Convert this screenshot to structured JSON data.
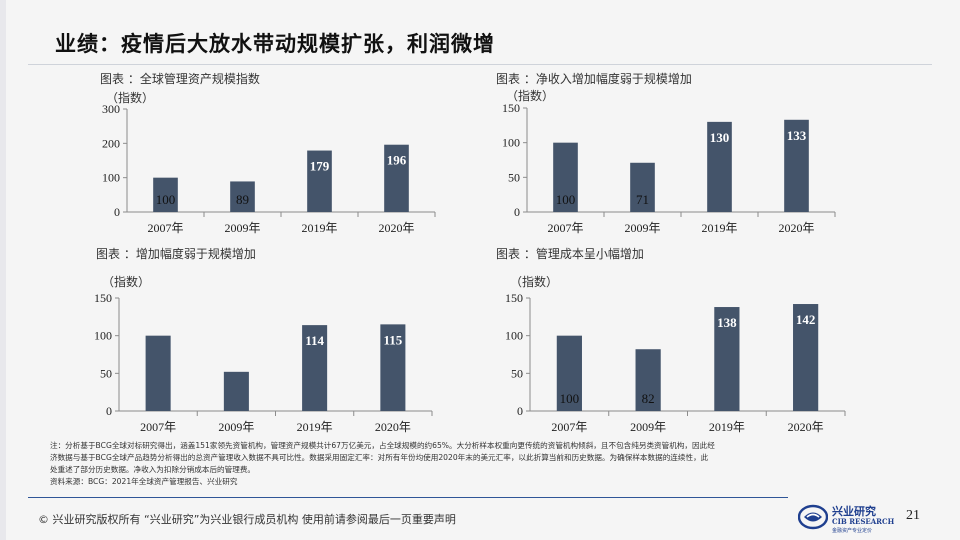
{
  "page": {
    "title": "业绩：疫情后大放水带动规模扩张，利润微增",
    "page_number": "21"
  },
  "chart_data": [
    {
      "type": "bar",
      "caption": "图表 ：全球管理资产规模指数",
      "unit": "（指数）",
      "categories": [
        "2007年",
        "2009年",
        "2019年",
        "2020年"
      ],
      "values": [
        100,
        89,
        179,
        196
      ],
      "ylim": [
        0,
        300
      ],
      "yticks": [
        0,
        100,
        200,
        300
      ],
      "label_inside": [
        false,
        false,
        true,
        true
      ],
      "bar_color": "#44546a",
      "grid": false
    },
    {
      "type": "bar",
      "caption": "图表 ：净收入增加幅度弱于规模增加",
      "unit": "（指数）",
      "categories": [
        "2007年",
        "2009年",
        "2019年",
        "2020年"
      ],
      "values": [
        100,
        71,
        130,
        133
      ],
      "ylim": [
        0,
        150
      ],
      "yticks": [
        0,
        50,
        100,
        150
      ],
      "label_inside": [
        false,
        false,
        true,
        true
      ],
      "bar_color": "#44546a",
      "grid": false
    },
    {
      "type": "bar",
      "caption": "图表 ：增加幅度弱于规模增加",
      "unit": "（指数）",
      "categories": [
        "2007年",
        "2009年",
        "2019年",
        "2020年"
      ],
      "values": [
        100,
        52,
        114,
        115
      ],
      "value_labels": [
        "",
        "",
        "114",
        "115"
      ],
      "ylim": [
        0,
        150
      ],
      "yticks": [
        0,
        50,
        100,
        150
      ],
      "label_inside": [
        false,
        false,
        true,
        true
      ],
      "bar_color": "#44546a",
      "grid": false
    },
    {
      "type": "bar",
      "caption": "图表 ：管理成本呈小幅增加",
      "unit": "（指数）",
      "categories": [
        "2007年",
        "2009年",
        "2019年",
        "2020年"
      ],
      "values": [
        100,
        82,
        138,
        142
      ],
      "ylim": [
        0,
        150
      ],
      "yticks": [
        0,
        50,
        100,
        150
      ],
      "label_inside": [
        false,
        false,
        true,
        true
      ],
      "bar_color": "#44546a",
      "grid": false
    }
  ],
  "notes": {
    "line1": "注：分析基于BCG全球对标研究得出，涵盖151家领先资管机构，管理资产规模共计67万亿美元，占全球规模的约65%。大分析样本权重向更传统的资管机构倾斜，且不包含纯另类资管机构，因此经",
    "line2": "济数据与基于BCG全球产品趋势分析得出的总资产管理收入数据不具可比性。数据采用固定汇率：对所有年份均使用2020年末的美元汇率，以此折算当前和历史数据。为确保样本数据的连续性，此",
    "line3": "处重述了部分历史数据。净收入为扣除分销成本后的管理费。",
    "source": "资料来源：BCG：2021年全球资产管理报告、兴业研究"
  },
  "footer": {
    "copyright": "©  兴业研究版权所有   “兴业研究”为兴业银行成员机构   使用前请参阅最后一页重要声明"
  },
  "logo": {
    "cn": "兴业研究",
    "en": "CIB RESEARCH",
    "slogan": "金融资产专业定价",
    "color": "#1f3f8f"
  }
}
